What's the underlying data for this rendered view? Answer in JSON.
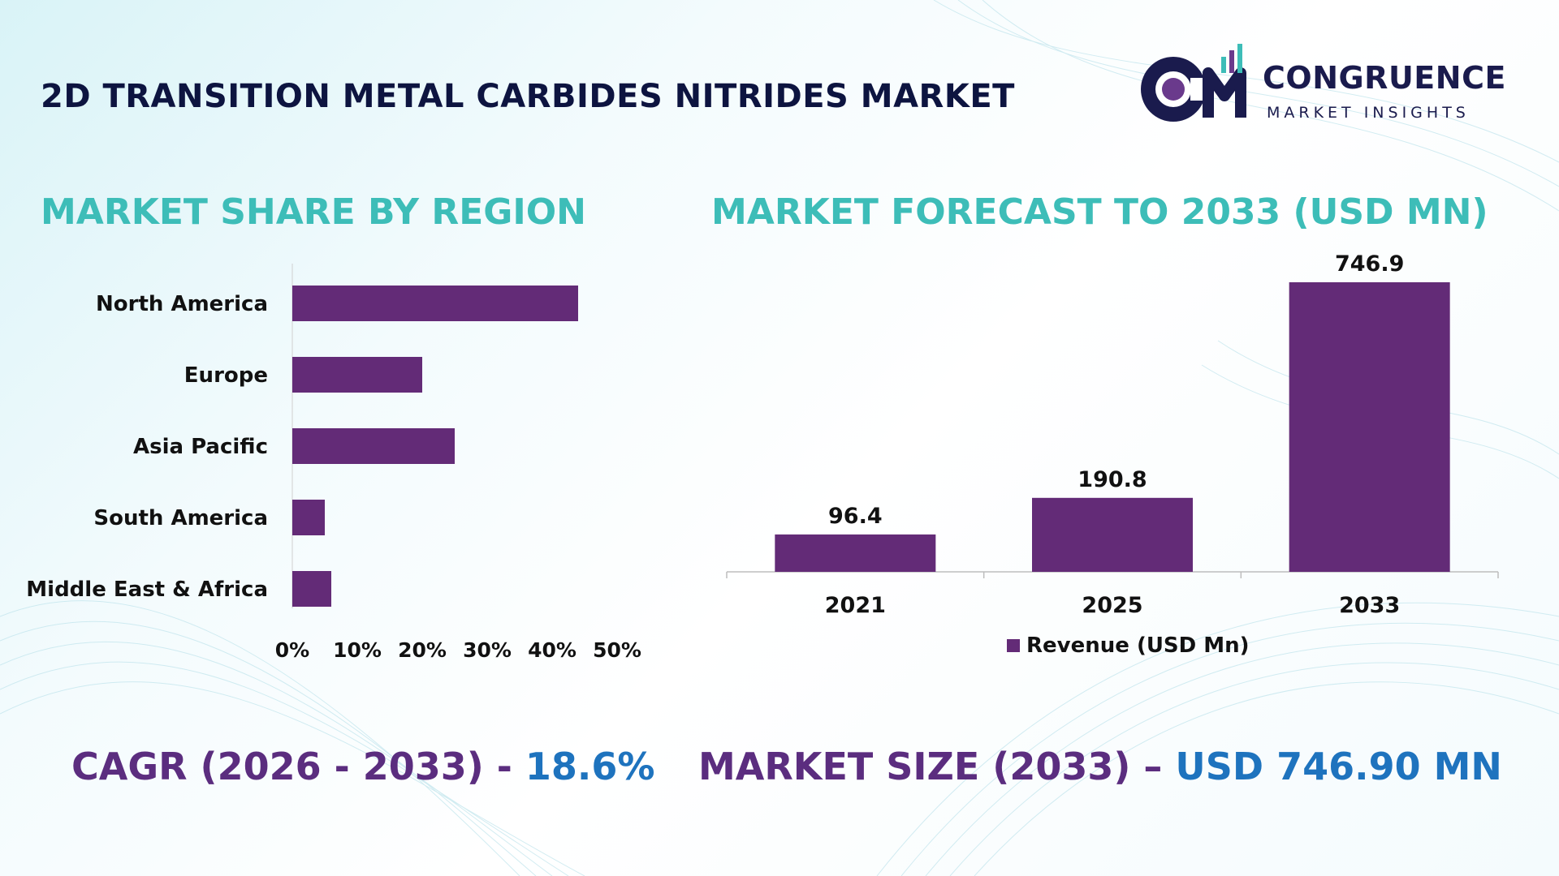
{
  "header": {
    "title": "2D TRANSITION METAL CARBIDES NITRIDES MARKET",
    "logo_letters": "CM",
    "logo_name": "CONGRUENCE",
    "logo_subtitle": "MARKET INSIGHTS"
  },
  "sections": {
    "share_title": "MARKET SHARE BY REGION",
    "forecast_title": "MARKET FORECAST TO 2033 (USD MN)"
  },
  "stats": {
    "cagr_label": "CAGR (2026 - 2033) - ",
    "cagr_value": "18.6%",
    "size_label": "MARKET SIZE (2033) – ",
    "size_value": "USD 746.90 MN"
  },
  "colors": {
    "bar": "#632b77",
    "title_teal": "#3dbdb8",
    "stat_purple": "#5b2d7f",
    "stat_blue": "#1e73be",
    "text_dark": "#111111"
  },
  "chart_data": [
    {
      "type": "bar",
      "orientation": "horizontal",
      "title": "MARKET SHARE BY REGION",
      "categories": [
        "North America",
        "Europe",
        "Asia Pacific",
        "South America",
        "Middle East & Africa"
      ],
      "values": [
        44,
        20,
        25,
        5,
        6
      ],
      "xlim": [
        0,
        50
      ],
      "ticks": [
        "0%",
        "10%",
        "20%",
        "30%",
        "40%",
        "50%"
      ],
      "grid": false
    },
    {
      "type": "bar",
      "orientation": "vertical",
      "title": "MARKET FORECAST TO 2033 (USD MN)",
      "categories": [
        "2021",
        "2025",
        "2033"
      ],
      "values": [
        96.4,
        190.8,
        746.9
      ],
      "value_labels": [
        "96.4",
        "190.8",
        "746.9"
      ],
      "ylim": [
        0,
        746.9
      ],
      "legend": "Revenue (USD Mn)",
      "legend_position": "bottom",
      "grid": false
    }
  ]
}
